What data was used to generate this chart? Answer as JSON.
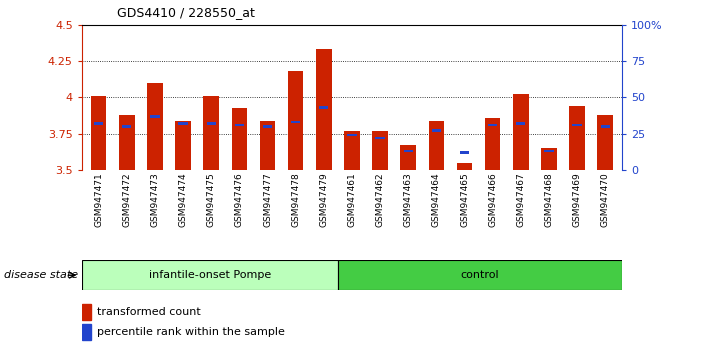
{
  "title": "GDS4410 / 228550_at",
  "samples": [
    "GSM947471",
    "GSM947472",
    "GSM947473",
    "GSM947474",
    "GSM947475",
    "GSM947476",
    "GSM947477",
    "GSM947478",
    "GSM947479",
    "GSM947461",
    "GSM947462",
    "GSM947463",
    "GSM947464",
    "GSM947465",
    "GSM947466",
    "GSM947467",
    "GSM947468",
    "GSM947469",
    "GSM947470"
  ],
  "red_values": [
    4.01,
    3.88,
    4.1,
    3.84,
    4.01,
    3.93,
    3.84,
    4.18,
    4.33,
    3.77,
    3.77,
    3.67,
    3.84,
    3.55,
    3.86,
    4.02,
    3.65,
    3.94,
    3.88
  ],
  "blue_values": [
    3.82,
    3.8,
    3.87,
    3.82,
    3.82,
    3.81,
    3.8,
    3.83,
    3.93,
    3.74,
    3.72,
    3.63,
    3.77,
    3.62,
    3.81,
    3.82,
    3.63,
    3.81,
    3.8
  ],
  "group1_label": "infantile-onset Pompe",
  "group2_label": "control",
  "group1_count": 9,
  "group2_count": 10,
  "y_min": 3.5,
  "y_max": 4.5,
  "y_ticks": [
    3.5,
    3.75,
    4.0,
    4.25,
    4.5
  ],
  "y_tick_labels": [
    "3.5",
    "3.75",
    "4",
    "4.25",
    "4.5"
  ],
  "right_y_ticks": [
    0,
    25,
    50,
    75,
    100
  ],
  "right_y_labels": [
    "0",
    "25",
    "50",
    "75",
    "100%"
  ],
  "bar_color": "#cc2200",
  "blue_color": "#2244cc",
  "group1_bg": "#bbffbb",
  "group2_bg": "#44cc44",
  "tick_bg": "#cccccc",
  "legend_red_label": "transformed count",
  "legend_blue_label": "percentile rank within the sample",
  "disease_state_label": "disease state"
}
